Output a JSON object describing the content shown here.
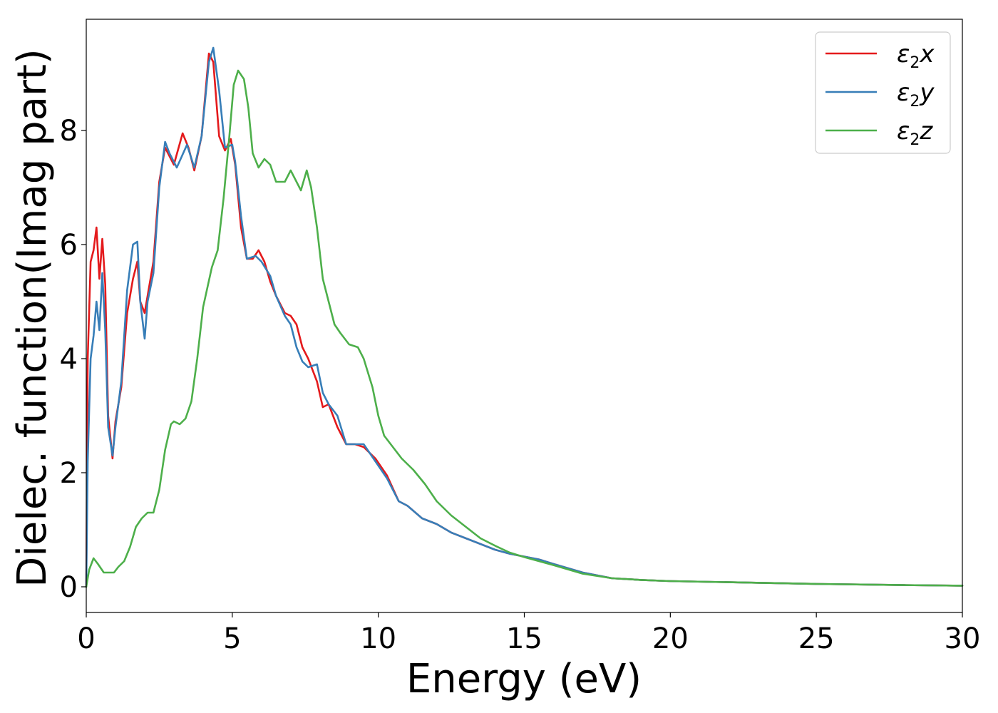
{
  "chart_data": {
    "type": "line",
    "title": "",
    "xlabel": "Energy (eV)",
    "ylabel": "Dielec. function(Imag part)",
    "xlim": [
      0,
      30
    ],
    "ylim": [
      -0.45,
      9.95
    ],
    "xticks": [
      0,
      5,
      10,
      15,
      20,
      25,
      30
    ],
    "yticks": [
      0,
      2,
      4,
      6,
      8
    ],
    "grid": false,
    "legend_position": "top-right",
    "series": [
      {
        "name": "ε2x",
        "legend_base": "ε",
        "legend_sub": "2",
        "legend_suffix": "x",
        "color": "#e41a1c",
        "x": [
          0,
          0.05,
          0.15,
          0.25,
          0.35,
          0.45,
          0.55,
          0.65,
          0.75,
          0.9,
          1.0,
          1.2,
          1.4,
          1.6,
          1.75,
          1.85,
          2.0,
          2.1,
          2.3,
          2.5,
          2.7,
          2.85,
          3.0,
          3.3,
          3.5,
          3.7,
          3.95,
          4.2,
          4.35,
          4.55,
          4.75,
          4.95,
          5.1,
          5.3,
          5.5,
          5.7,
          5.9,
          6.1,
          6.3,
          6.5,
          6.8,
          7.0,
          7.2,
          7.4,
          7.6,
          7.9,
          8.1,
          8.3,
          8.6,
          8.9,
          9.2,
          9.5,
          9.9,
          10.3,
          10.7,
          11.0,
          11.5,
          12.0,
          12.5,
          13.0,
          13.5,
          14.0,
          14.5,
          15.0,
          15.5,
          16.0,
          17.0,
          18.0,
          19.0,
          20.0,
          22.0,
          25.0,
          28.0,
          30.0
        ],
        "y": [
          0.0,
          4.0,
          5.7,
          5.9,
          6.3,
          5.4,
          6.1,
          5.3,
          3.0,
          2.25,
          2.9,
          3.5,
          4.8,
          5.4,
          5.7,
          5.0,
          4.8,
          5.1,
          5.7,
          7.1,
          7.7,
          7.55,
          7.4,
          7.95,
          7.7,
          7.3,
          7.9,
          9.35,
          9.2,
          7.9,
          7.65,
          7.85,
          7.4,
          6.3,
          5.75,
          5.75,
          5.9,
          5.7,
          5.35,
          5.1,
          4.8,
          4.75,
          4.6,
          4.2,
          4.0,
          3.6,
          3.15,
          3.2,
          2.8,
          2.5,
          2.5,
          2.45,
          2.25,
          1.95,
          1.5,
          1.42,
          1.2,
          1.1,
          0.95,
          0.85,
          0.75,
          0.65,
          0.58,
          0.53,
          0.48,
          0.4,
          0.25,
          0.15,
          0.12,
          0.1,
          0.08,
          0.05,
          0.03,
          0.02
        ]
      },
      {
        "name": "ε2y",
        "legend_base": "ε",
        "legend_sub": "2",
        "legend_suffix": "y",
        "color": "#377eb8",
        "x": [
          0,
          0.05,
          0.15,
          0.25,
          0.35,
          0.45,
          0.55,
          0.65,
          0.75,
          0.9,
          1.0,
          1.2,
          1.4,
          1.6,
          1.75,
          1.85,
          2.0,
          2.1,
          2.3,
          2.5,
          2.7,
          2.85,
          3.1,
          3.45,
          3.7,
          3.95,
          4.2,
          4.35,
          4.55,
          4.75,
          5.0,
          5.1,
          5.3,
          5.5,
          5.8,
          6.0,
          6.3,
          6.5,
          6.8,
          7.0,
          7.2,
          7.4,
          7.6,
          7.9,
          8.1,
          8.3,
          8.6,
          8.9,
          9.2,
          9.5,
          9.9,
          10.3,
          10.7,
          11.0,
          11.5,
          12.0,
          12.5,
          13.0,
          13.5,
          14.0,
          14.5,
          15.0,
          15.5,
          16.0,
          17.0,
          18.0,
          19.0,
          20.0,
          22.0,
          25.0,
          28.0,
          30.0
        ],
        "y": [
          0.0,
          2.2,
          4.0,
          4.4,
          5.0,
          4.5,
          5.5,
          4.5,
          2.8,
          2.3,
          2.8,
          3.6,
          5.2,
          6.0,
          6.05,
          5.0,
          4.35,
          5.0,
          5.5,
          7.0,
          7.8,
          7.6,
          7.35,
          7.75,
          7.35,
          7.9,
          9.2,
          9.45,
          8.7,
          7.7,
          7.75,
          7.45,
          6.5,
          5.75,
          5.8,
          5.7,
          5.45,
          5.1,
          4.75,
          4.6,
          4.2,
          3.95,
          3.85,
          3.9,
          3.4,
          3.2,
          3.0,
          2.5,
          2.5,
          2.5,
          2.2,
          1.9,
          1.5,
          1.42,
          1.2,
          1.1,
          0.95,
          0.85,
          0.75,
          0.65,
          0.58,
          0.53,
          0.48,
          0.4,
          0.25,
          0.15,
          0.12,
          0.1,
          0.08,
          0.05,
          0.03,
          0.02
        ]
      },
      {
        "name": "ε2z",
        "legend_base": "ε",
        "legend_sub": "2",
        "legend_suffix": "z",
        "color": "#4daf4a",
        "x": [
          0,
          0.1,
          0.25,
          0.4,
          0.6,
          0.8,
          0.95,
          1.1,
          1.3,
          1.5,
          1.7,
          1.9,
          2.1,
          2.3,
          2.5,
          2.7,
          2.9,
          3.0,
          3.2,
          3.4,
          3.6,
          3.8,
          4.0,
          4.3,
          4.5,
          4.7,
          4.9,
          5.05,
          5.2,
          5.4,
          5.55,
          5.7,
          5.9,
          6.1,
          6.3,
          6.5,
          6.8,
          7.0,
          7.2,
          7.35,
          7.55,
          7.7,
          7.9,
          8.1,
          8.3,
          8.5,
          8.7,
          9.0,
          9.3,
          9.5,
          9.8,
          10.0,
          10.2,
          10.5,
          10.8,
          11.2,
          11.6,
          12.0,
          12.5,
          13.0,
          13.5,
          14.0,
          14.5,
          15.0,
          15.5,
          16.0,
          17.0,
          18.0,
          19.0,
          20.0,
          22.0,
          25.0,
          28.0,
          30.0
        ],
        "y": [
          0.0,
          0.3,
          0.5,
          0.4,
          0.25,
          0.25,
          0.25,
          0.35,
          0.45,
          0.7,
          1.05,
          1.2,
          1.3,
          1.3,
          1.7,
          2.4,
          2.85,
          2.9,
          2.85,
          2.95,
          3.25,
          4.0,
          4.9,
          5.6,
          5.9,
          6.8,
          7.9,
          8.8,
          9.05,
          8.9,
          8.4,
          7.6,
          7.35,
          7.5,
          7.4,
          7.1,
          7.1,
          7.3,
          7.1,
          6.95,
          7.3,
          7.0,
          6.3,
          5.4,
          5.0,
          4.6,
          4.45,
          4.25,
          4.2,
          4.0,
          3.5,
          3.0,
          2.65,
          2.45,
          2.25,
          2.05,
          1.8,
          1.5,
          1.25,
          1.05,
          0.85,
          0.72,
          0.6,
          0.52,
          0.45,
          0.38,
          0.23,
          0.15,
          0.12,
          0.1,
          0.08,
          0.05,
          0.03,
          0.02
        ]
      }
    ]
  }
}
